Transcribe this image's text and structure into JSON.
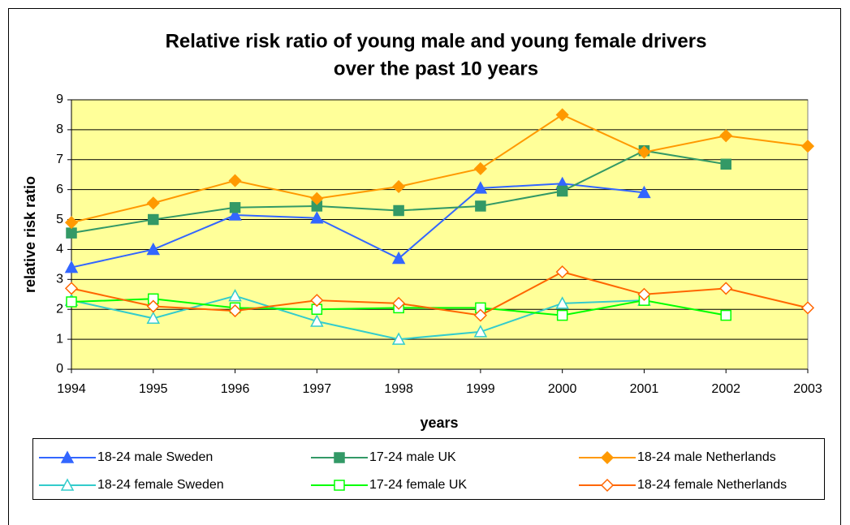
{
  "chart_data": {
    "type": "line",
    "title": [
      "Relative risk ratio of young male and young female drivers",
      "over the past 10 years"
    ],
    "x_label": "years",
    "y_label": "relative risk ratio",
    "x": [
      1994,
      1995,
      1996,
      1997,
      1998,
      1999,
      2000,
      2001,
      2002,
      2003
    ],
    "xlim": [
      1994,
      2003
    ],
    "xticks": [
      1994,
      1995,
      1996,
      1997,
      1998,
      1999,
      2000,
      2001,
      2002,
      2003
    ],
    "ylim": [
      0,
      9
    ],
    "yticks": [
      0,
      1,
      2,
      3,
      4,
      5,
      6,
      7,
      8,
      9
    ],
    "grid": true,
    "plot_background": "#ffff99",
    "legend": "bottom",
    "series": [
      {
        "name": "18-24 male Sweden",
        "color": "#3366ff",
        "marker": "triangle",
        "marker_filled": true,
        "values": [
          3.4,
          4.0,
          5.15,
          5.05,
          3.7,
          6.05,
          6.2,
          5.9,
          null,
          null
        ]
      },
      {
        "name": "17-24 male UK",
        "color": "#339966",
        "marker": "square",
        "marker_filled": true,
        "values": [
          4.55,
          5.0,
          5.4,
          5.45,
          5.3,
          5.45,
          5.95,
          7.3,
          6.85,
          null
        ]
      },
      {
        "name": "18-24 male Netherlands",
        "color": "#ff9900",
        "marker": "diamond",
        "marker_filled": true,
        "values": [
          4.9,
          5.55,
          6.3,
          5.7,
          6.1,
          6.7,
          8.5,
          7.25,
          7.8,
          7.45
        ]
      },
      {
        "name": "18-24 female Sweden",
        "color": "#33cccc",
        "marker": "triangle",
        "marker_filled": false,
        "values": [
          2.3,
          1.7,
          2.45,
          1.6,
          1.0,
          1.25,
          2.2,
          2.3,
          null,
          null
        ]
      },
      {
        "name": "17-24 female UK",
        "color": "#00ff00",
        "marker": "square",
        "marker_filled": false,
        "values": [
          2.25,
          2.35,
          2.05,
          2.0,
          2.05,
          2.05,
          1.8,
          2.3,
          1.8,
          null
        ]
      },
      {
        "name": "18-24 female Netherlands",
        "color": "#ff6600",
        "marker": "diamond",
        "marker_filled": false,
        "values": [
          2.7,
          2.1,
          1.95,
          2.3,
          2.2,
          1.8,
          3.25,
          2.5,
          2.7,
          2.05
        ]
      }
    ]
  }
}
